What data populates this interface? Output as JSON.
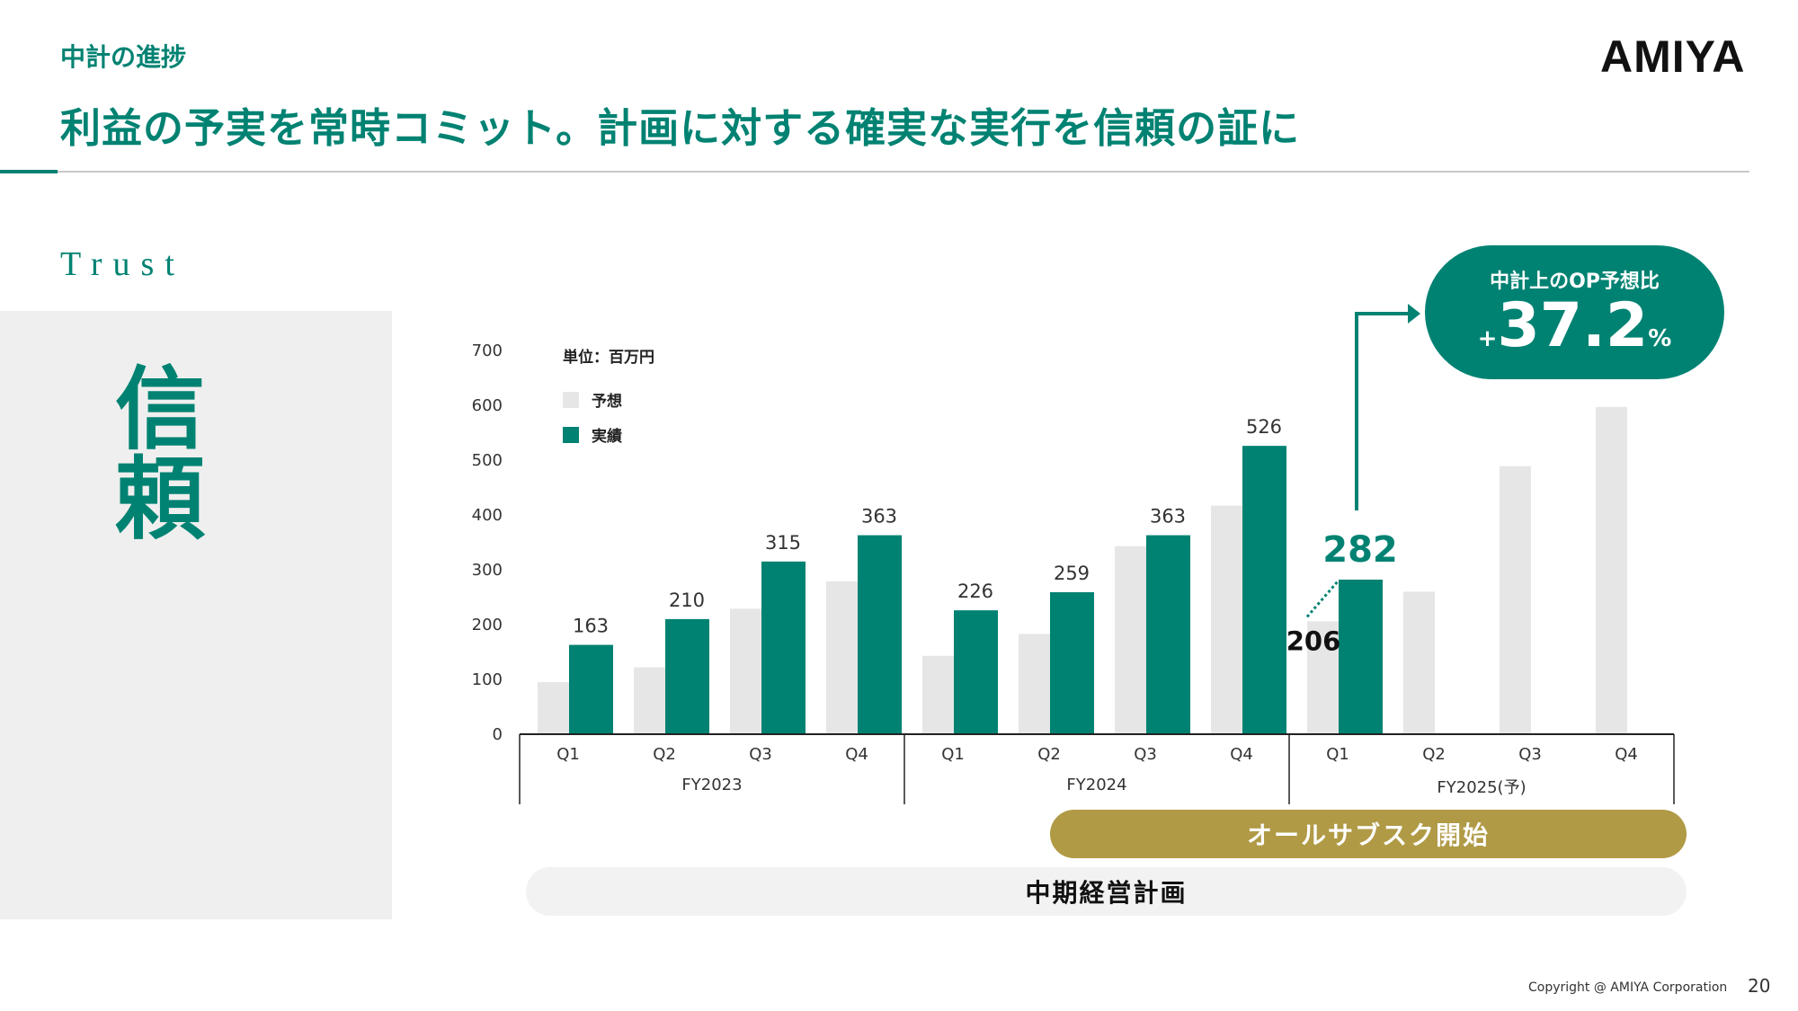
{
  "header": {
    "section": "中計の進捗",
    "headline": "利益の予実を常時コミット。計画に対する確実な実行を信頼の証に",
    "logo": "AMIYA"
  },
  "side": {
    "trust": "Trust",
    "kanji": "信頼"
  },
  "colors": {
    "actual": "#008272",
    "forecast": "#e6e6e6",
    "gold": "#b09a45",
    "accent": "#008272"
  },
  "chart_data": {
    "type": "bar",
    "unit_label": "単位：百万円",
    "ylim": [
      0,
      700
    ],
    "yticks": [
      0,
      100,
      200,
      300,
      400,
      500,
      600,
      700
    ],
    "groups": [
      {
        "label": "FY2023",
        "quarters": [
          "Q1",
          "Q2",
          "Q3",
          "Q4"
        ]
      },
      {
        "label": "FY2024",
        "quarters": [
          "Q1",
          "Q2",
          "Q3",
          "Q4"
        ]
      },
      {
        "label": "FY2025(予)",
        "quarters": [
          "Q1",
          "Q2",
          "Q3",
          "Q4"
        ]
      }
    ],
    "series": [
      {
        "name": "予想",
        "values": [
          95,
          122,
          229,
          279,
          143,
          183,
          343,
          417,
          206,
          260,
          489,
          597
        ]
      },
      {
        "name": "実績",
        "values": [
          163,
          210,
          315,
          363,
          226,
          259,
          363,
          526,
          282,
          null,
          null,
          null
        ]
      }
    ],
    "data_labels": [
      "163",
      "210",
      "315",
      "363",
      "226",
      "259",
      "363",
      "526",
      "282"
    ],
    "forecast_label": {
      "index": 8,
      "text": "206"
    },
    "legend_placement": "top-left",
    "grid": false
  },
  "callout": {
    "title": "中計上のOP予想比",
    "sign": "+",
    "value": "37.2",
    "unit": "%"
  },
  "bands": {
    "subscription": "オールサブスク開始",
    "plan": "中期経営計画"
  },
  "footer": {
    "copyright": "Copyright @ AMIYA Corporation",
    "page": "20"
  }
}
